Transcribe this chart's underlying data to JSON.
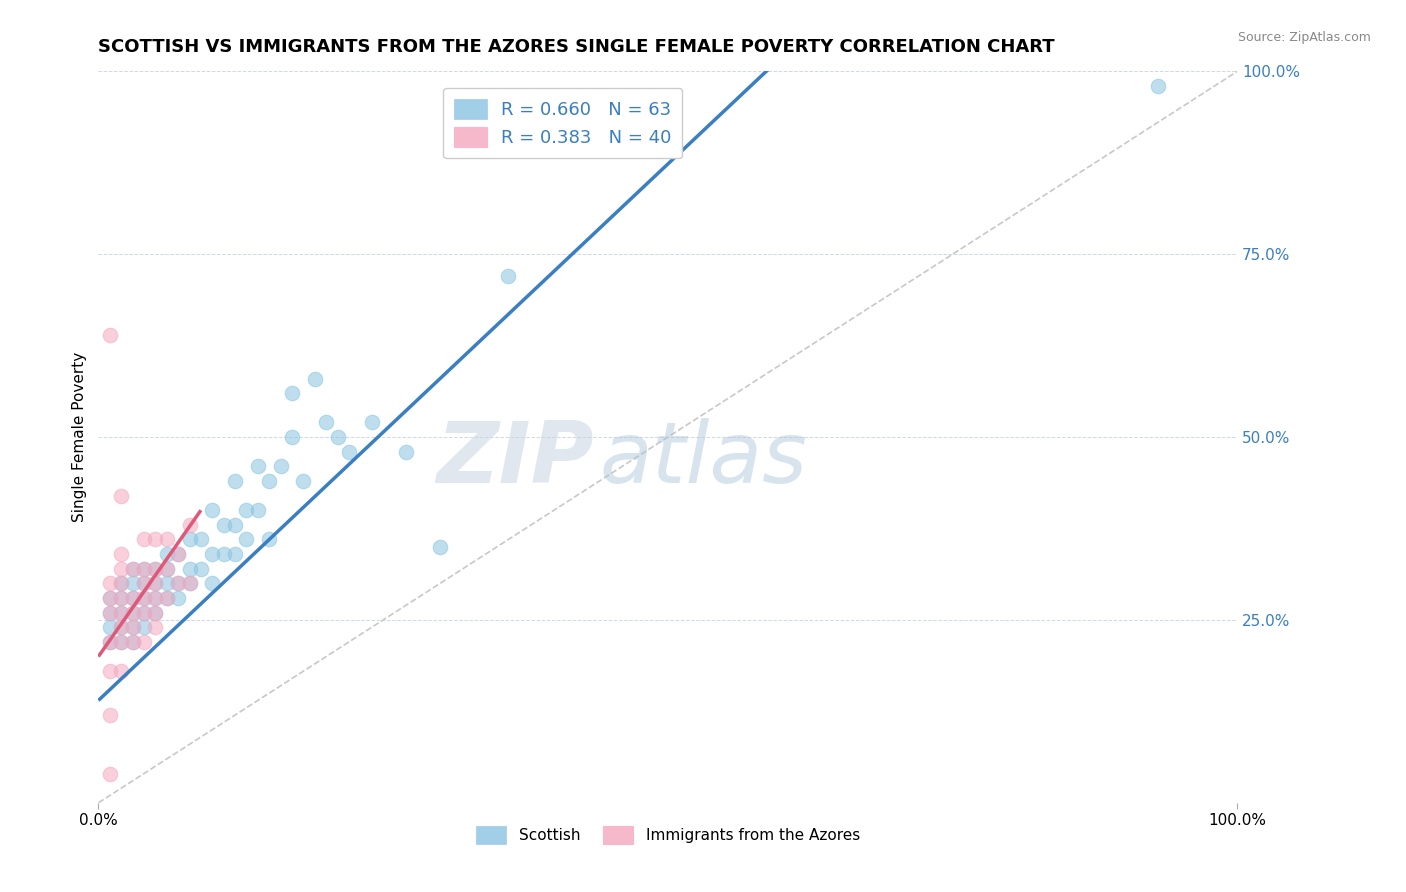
{
  "title": "SCOTTISH VS IMMIGRANTS FROM THE AZORES SINGLE FEMALE POVERTY CORRELATION CHART",
  "source": "Source: ZipAtlas.com",
  "ylabel": "Single Female Poverty",
  "xlim": [
    0,
    1.0
  ],
  "ylim": [
    0,
    1.0
  ],
  "legend_labels": [
    "Scottish",
    "Immigrants from the Azores"
  ],
  "blue_color": "#89c4e1",
  "pink_color": "#f4a8bf",
  "blue_line_color": "#3a7fc1",
  "pink_line_color": "#e05878",
  "diag_color": "#c8c8c8",
  "r_blue": 0.66,
  "n_blue": 63,
  "r_pink": 0.383,
  "n_pink": 40,
  "watermark_zip": "ZIP",
  "watermark_atlas": "atlas",
  "blue_scatter_x": [
    0.01,
    0.01,
    0.01,
    0.01,
    0.02,
    0.02,
    0.02,
    0.02,
    0.02,
    0.03,
    0.03,
    0.03,
    0.03,
    0.03,
    0.03,
    0.04,
    0.04,
    0.04,
    0.04,
    0.04,
    0.05,
    0.05,
    0.05,
    0.05,
    0.06,
    0.06,
    0.06,
    0.06,
    0.07,
    0.07,
    0.07,
    0.08,
    0.08,
    0.08,
    0.09,
    0.09,
    0.1,
    0.1,
    0.1,
    0.11,
    0.11,
    0.12,
    0.12,
    0.12,
    0.13,
    0.13,
    0.14,
    0.14,
    0.15,
    0.15,
    0.16,
    0.17,
    0.17,
    0.18,
    0.19,
    0.2,
    0.21,
    0.22,
    0.24,
    0.27,
    0.3,
    0.36,
    0.93
  ],
  "blue_scatter_y": [
    0.22,
    0.24,
    0.26,
    0.28,
    0.22,
    0.24,
    0.26,
    0.28,
    0.3,
    0.22,
    0.24,
    0.26,
    0.28,
    0.3,
    0.32,
    0.24,
    0.26,
    0.28,
    0.3,
    0.32,
    0.26,
    0.28,
    0.3,
    0.32,
    0.28,
    0.3,
    0.32,
    0.34,
    0.28,
    0.3,
    0.34,
    0.3,
    0.32,
    0.36,
    0.32,
    0.36,
    0.3,
    0.34,
    0.4,
    0.34,
    0.38,
    0.34,
    0.38,
    0.44,
    0.36,
    0.4,
    0.4,
    0.46,
    0.36,
    0.44,
    0.46,
    0.5,
    0.56,
    0.44,
    0.58,
    0.52,
    0.5,
    0.48,
    0.52,
    0.48,
    0.35,
    0.72,
    0.98
  ],
  "pink_scatter_x": [
    0.01,
    0.01,
    0.01,
    0.01,
    0.01,
    0.01,
    0.01,
    0.02,
    0.02,
    0.02,
    0.02,
    0.02,
    0.02,
    0.02,
    0.02,
    0.02,
    0.03,
    0.03,
    0.03,
    0.03,
    0.03,
    0.04,
    0.04,
    0.04,
    0.04,
    0.04,
    0.04,
    0.05,
    0.05,
    0.05,
    0.05,
    0.05,
    0.05,
    0.06,
    0.06,
    0.06,
    0.07,
    0.07,
    0.08,
    0.08
  ],
  "pink_scatter_y": [
    0.04,
    0.12,
    0.18,
    0.22,
    0.26,
    0.28,
    0.3,
    0.18,
    0.22,
    0.24,
    0.26,
    0.28,
    0.3,
    0.32,
    0.34,
    0.42,
    0.22,
    0.24,
    0.26,
    0.28,
    0.32,
    0.22,
    0.26,
    0.28,
    0.3,
    0.32,
    0.36,
    0.24,
    0.26,
    0.28,
    0.3,
    0.32,
    0.36,
    0.28,
    0.32,
    0.36,
    0.3,
    0.34,
    0.3,
    0.38
  ],
  "pink_high_x": [
    0.01
  ],
  "pink_high_y": [
    0.64
  ],
  "blue_line_x": [
    0.0,
    0.6
  ],
  "blue_line_y": [
    0.14,
    1.02
  ],
  "pink_line_x": [
    0.0,
    0.09
  ],
  "pink_line_y": [
    0.2,
    0.4
  ],
  "diag_line_x": [
    0.0,
    1.0
  ],
  "diag_line_y": [
    0.0,
    1.0
  ],
  "title_fontsize": 13,
  "label_fontsize": 11,
  "tick_fontsize": 11,
  "legend_fontsize": 13
}
